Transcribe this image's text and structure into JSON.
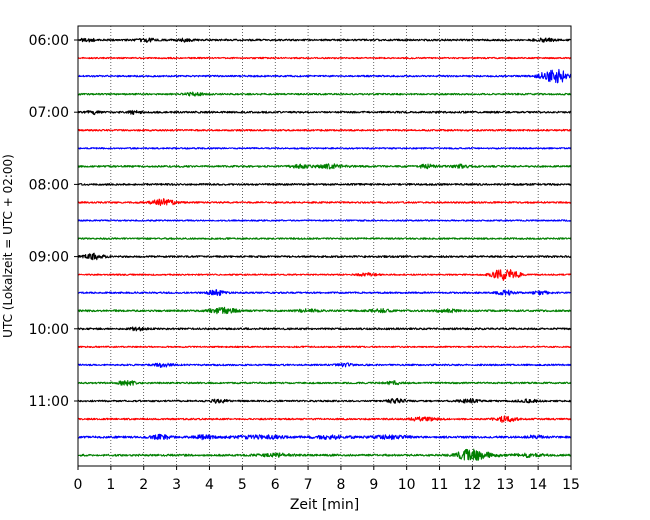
{
  "chart_data": {
    "type": "line",
    "title": "",
    "xlabel": "Zeit  [min]",
    "ylabel": "UTC (Lokalzeit = UTC + 02:00)",
    "xlim": [
      0,
      15
    ],
    "x_ticks": [
      "0",
      "1",
      "2",
      "3",
      "4",
      "5",
      "6",
      "7",
      "8",
      "9",
      "10",
      "11",
      "12",
      "13",
      "14",
      "15"
    ],
    "y_ticks": [
      "06:00",
      "07:00",
      "08:00",
      "09:00",
      "10:00",
      "11:00"
    ],
    "grid": "vertical dotted lines at each minute",
    "legend": "none",
    "colors": [
      "#000000",
      "#ff0000",
      "#0000ff",
      "#008000"
    ],
    "row_start_times": [
      "06:00",
      "06:15",
      "06:30",
      "06:45",
      "07:00",
      "07:15",
      "07:30",
      "07:45",
      "08:00",
      "08:15",
      "08:30",
      "08:45",
      "09:00",
      "09:15",
      "09:30",
      "09:45",
      "10:00",
      "10:15",
      "10:30",
      "10:45",
      "11:00",
      "11:15",
      "11:30",
      "11:45"
    ],
    "series": [
      {
        "row": 0,
        "noise": 0.9,
        "events": [
          [
            0.3,
            0.25,
            1.5
          ],
          [
            2.1,
            0.25,
            1.4
          ],
          [
            3.2,
            0.25,
            1.4
          ],
          [
            14.2,
            0.3,
            1.4
          ]
        ]
      },
      {
        "row": 1,
        "noise": 0.7,
        "events": []
      },
      {
        "row": 2,
        "noise": 0.8,
        "events": [
          [
            14.4,
            0.35,
            5.5
          ],
          [
            14.75,
            0.25,
            3.0
          ]
        ]
      },
      {
        "row": 3,
        "noise": 0.8,
        "events": [
          [
            3.5,
            0.3,
            1.4
          ]
        ]
      },
      {
        "row": 4,
        "noise": 0.9,
        "events": [
          [
            0.45,
            0.2,
            1.6
          ],
          [
            1.7,
            0.2,
            1.4
          ]
        ]
      },
      {
        "row": 5,
        "noise": 0.8,
        "events": []
      },
      {
        "row": 6,
        "noise": 0.7,
        "events": []
      },
      {
        "row": 7,
        "noise": 0.9,
        "events": [
          [
            6.8,
            0.3,
            1.6
          ],
          [
            7.7,
            0.4,
            1.8
          ],
          [
            10.6,
            0.3,
            1.5
          ],
          [
            11.7,
            0.3,
            1.4
          ]
        ]
      },
      {
        "row": 8,
        "noise": 0.9,
        "events": []
      },
      {
        "row": 9,
        "noise": 0.8,
        "events": [
          [
            2.6,
            0.35,
            3.0
          ]
        ]
      },
      {
        "row": 10,
        "noise": 0.7,
        "events": []
      },
      {
        "row": 11,
        "noise": 0.8,
        "events": []
      },
      {
        "row": 12,
        "noise": 0.9,
        "events": [
          [
            0.5,
            0.3,
            2.6
          ]
        ]
      },
      {
        "row": 13,
        "noise": 0.7,
        "events": [
          [
            12.9,
            0.3,
            5.0
          ],
          [
            13.25,
            0.25,
            2.5
          ],
          [
            8.8,
            0.3,
            1.3
          ]
        ]
      },
      {
        "row": 14,
        "noise": 0.8,
        "events": [
          [
            4.2,
            0.25,
            2.4
          ],
          [
            13.0,
            0.3,
            2.0
          ],
          [
            14.1,
            0.25,
            1.6
          ]
        ]
      },
      {
        "row": 15,
        "noise": 0.9,
        "events": [
          [
            4.4,
            0.4,
            2.8
          ],
          [
            7.0,
            0.3,
            1.4
          ],
          [
            9.2,
            0.3,
            1.4
          ],
          [
            11.2,
            0.3,
            1.6
          ]
        ]
      },
      {
        "row": 16,
        "noise": 0.9,
        "events": [
          [
            1.8,
            0.2,
            1.5
          ]
        ]
      },
      {
        "row": 17,
        "noise": 0.7,
        "events": []
      },
      {
        "row": 18,
        "noise": 0.8,
        "events": [
          [
            2.6,
            0.25,
            2.0
          ],
          [
            8.1,
            0.25,
            1.4
          ]
        ]
      },
      {
        "row": 19,
        "noise": 0.8,
        "events": [
          [
            1.5,
            0.3,
            2.2
          ],
          [
            9.6,
            0.3,
            1.4
          ]
        ]
      },
      {
        "row": 20,
        "noise": 0.8,
        "events": [
          [
            4.3,
            0.25,
            1.8
          ],
          [
            9.7,
            0.3,
            2.0
          ],
          [
            11.9,
            0.3,
            1.8
          ],
          [
            13.7,
            0.3,
            1.4
          ]
        ]
      },
      {
        "row": 21,
        "noise": 0.8,
        "events": [
          [
            10.5,
            0.4,
            1.8
          ],
          [
            13.0,
            0.3,
            3.0
          ]
        ]
      },
      {
        "row": 22,
        "noise": 1.0,
        "events": [
          [
            2.5,
            0.3,
            2.2
          ],
          [
            3.8,
            0.3,
            1.6
          ],
          [
            5.5,
            0.8,
            1.5
          ],
          [
            7.7,
            0.5,
            1.5
          ],
          [
            9.5,
            0.5,
            1.5
          ],
          [
            13.9,
            0.3,
            1.4
          ]
        ]
      },
      {
        "row": 23,
        "noise": 1.0,
        "events": [
          [
            11.9,
            0.35,
            5.0
          ],
          [
            12.4,
            0.4,
            2.0
          ],
          [
            13.7,
            0.4,
            1.5
          ],
          [
            6.0,
            0.5,
            1.4
          ]
        ]
      }
    ]
  }
}
